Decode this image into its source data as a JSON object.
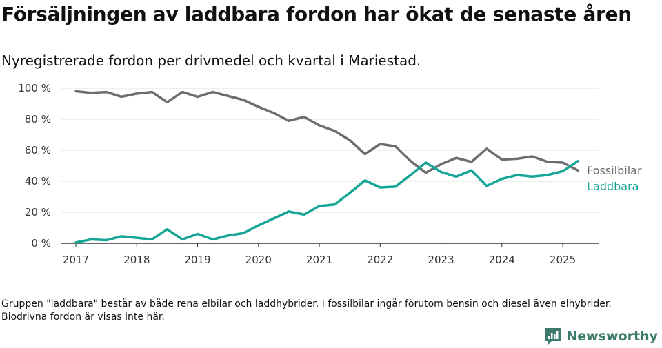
{
  "title": "Försäljningen av laddbara fordon har ökat de senaste åren",
  "subtitle": "Nyregistrerade fordon per drivmedel och kvartal i Mariestad.",
  "footnote": "Gruppen \"laddbara\" består av både rena elbilar och laddhybrider. I fossilbilar ingår förutom bensin och diesel även elhybrider. Biodrivna fordon är visas inte här.",
  "brand": {
    "name": "Newsworthy",
    "icon": "newsworthy-logo-icon"
  },
  "colors": {
    "fossil": "#6e6c73",
    "laddbara": "#14a596",
    "grid": "#dddddd",
    "axis": "#333333",
    "brand": "#3c7a6c"
  },
  "chart_data": {
    "type": "line",
    "title": "Försäljningen av laddbara fordon har ökat de senaste åren",
    "xlabel": "",
    "ylabel": "",
    "x_start": 2017.0,
    "x_step": 0.25,
    "xlim": [
      2016.75,
      2025.6
    ],
    "ylim": [
      0,
      100
    ],
    "x_ticks": [
      2017,
      2018,
      2019,
      2020,
      2021,
      2022,
      2023,
      2024,
      2025
    ],
    "x_tick_labels": [
      "2017",
      "2018",
      "2019",
      "2020",
      "2021",
      "2022",
      "2023",
      "2024",
      "2025"
    ],
    "y_ticks": [
      0,
      20,
      40,
      60,
      80,
      100
    ],
    "y_tick_labels": [
      "0 %",
      "20 %",
      "40 %",
      "60 %",
      "80 %",
      "100 %"
    ],
    "grid": true,
    "series": [
      {
        "name": "Fossilbilar",
        "color": "#6e6c73",
        "values": [
          98,
          97,
          97.5,
          94.5,
          96.5,
          97.5,
          91,
          97.5,
          94.5,
          97.5,
          95,
          92.5,
          88,
          84,
          79,
          81.5,
          76,
          72.5,
          66.5,
          57.5,
          64,
          62.5,
          53,
          45.5,
          51,
          55,
          52.5,
          61,
          54,
          54.5,
          56,
          52.5,
          52,
          47
        ]
      },
      {
        "name": "Laddbara",
        "color": "#14a596",
        "values": [
          0.5,
          2.5,
          2,
          4.5,
          3.5,
          2.5,
          9,
          2.5,
          6,
          2.5,
          5,
          6.5,
          11.5,
          16,
          20.5,
          18.5,
          24,
          25,
          32.5,
          40.5,
          36,
          36.5,
          44,
          52,
          46,
          43,
          47,
          37,
          41.5,
          44,
          43,
          44,
          46.5,
          53
        ]
      }
    ]
  }
}
